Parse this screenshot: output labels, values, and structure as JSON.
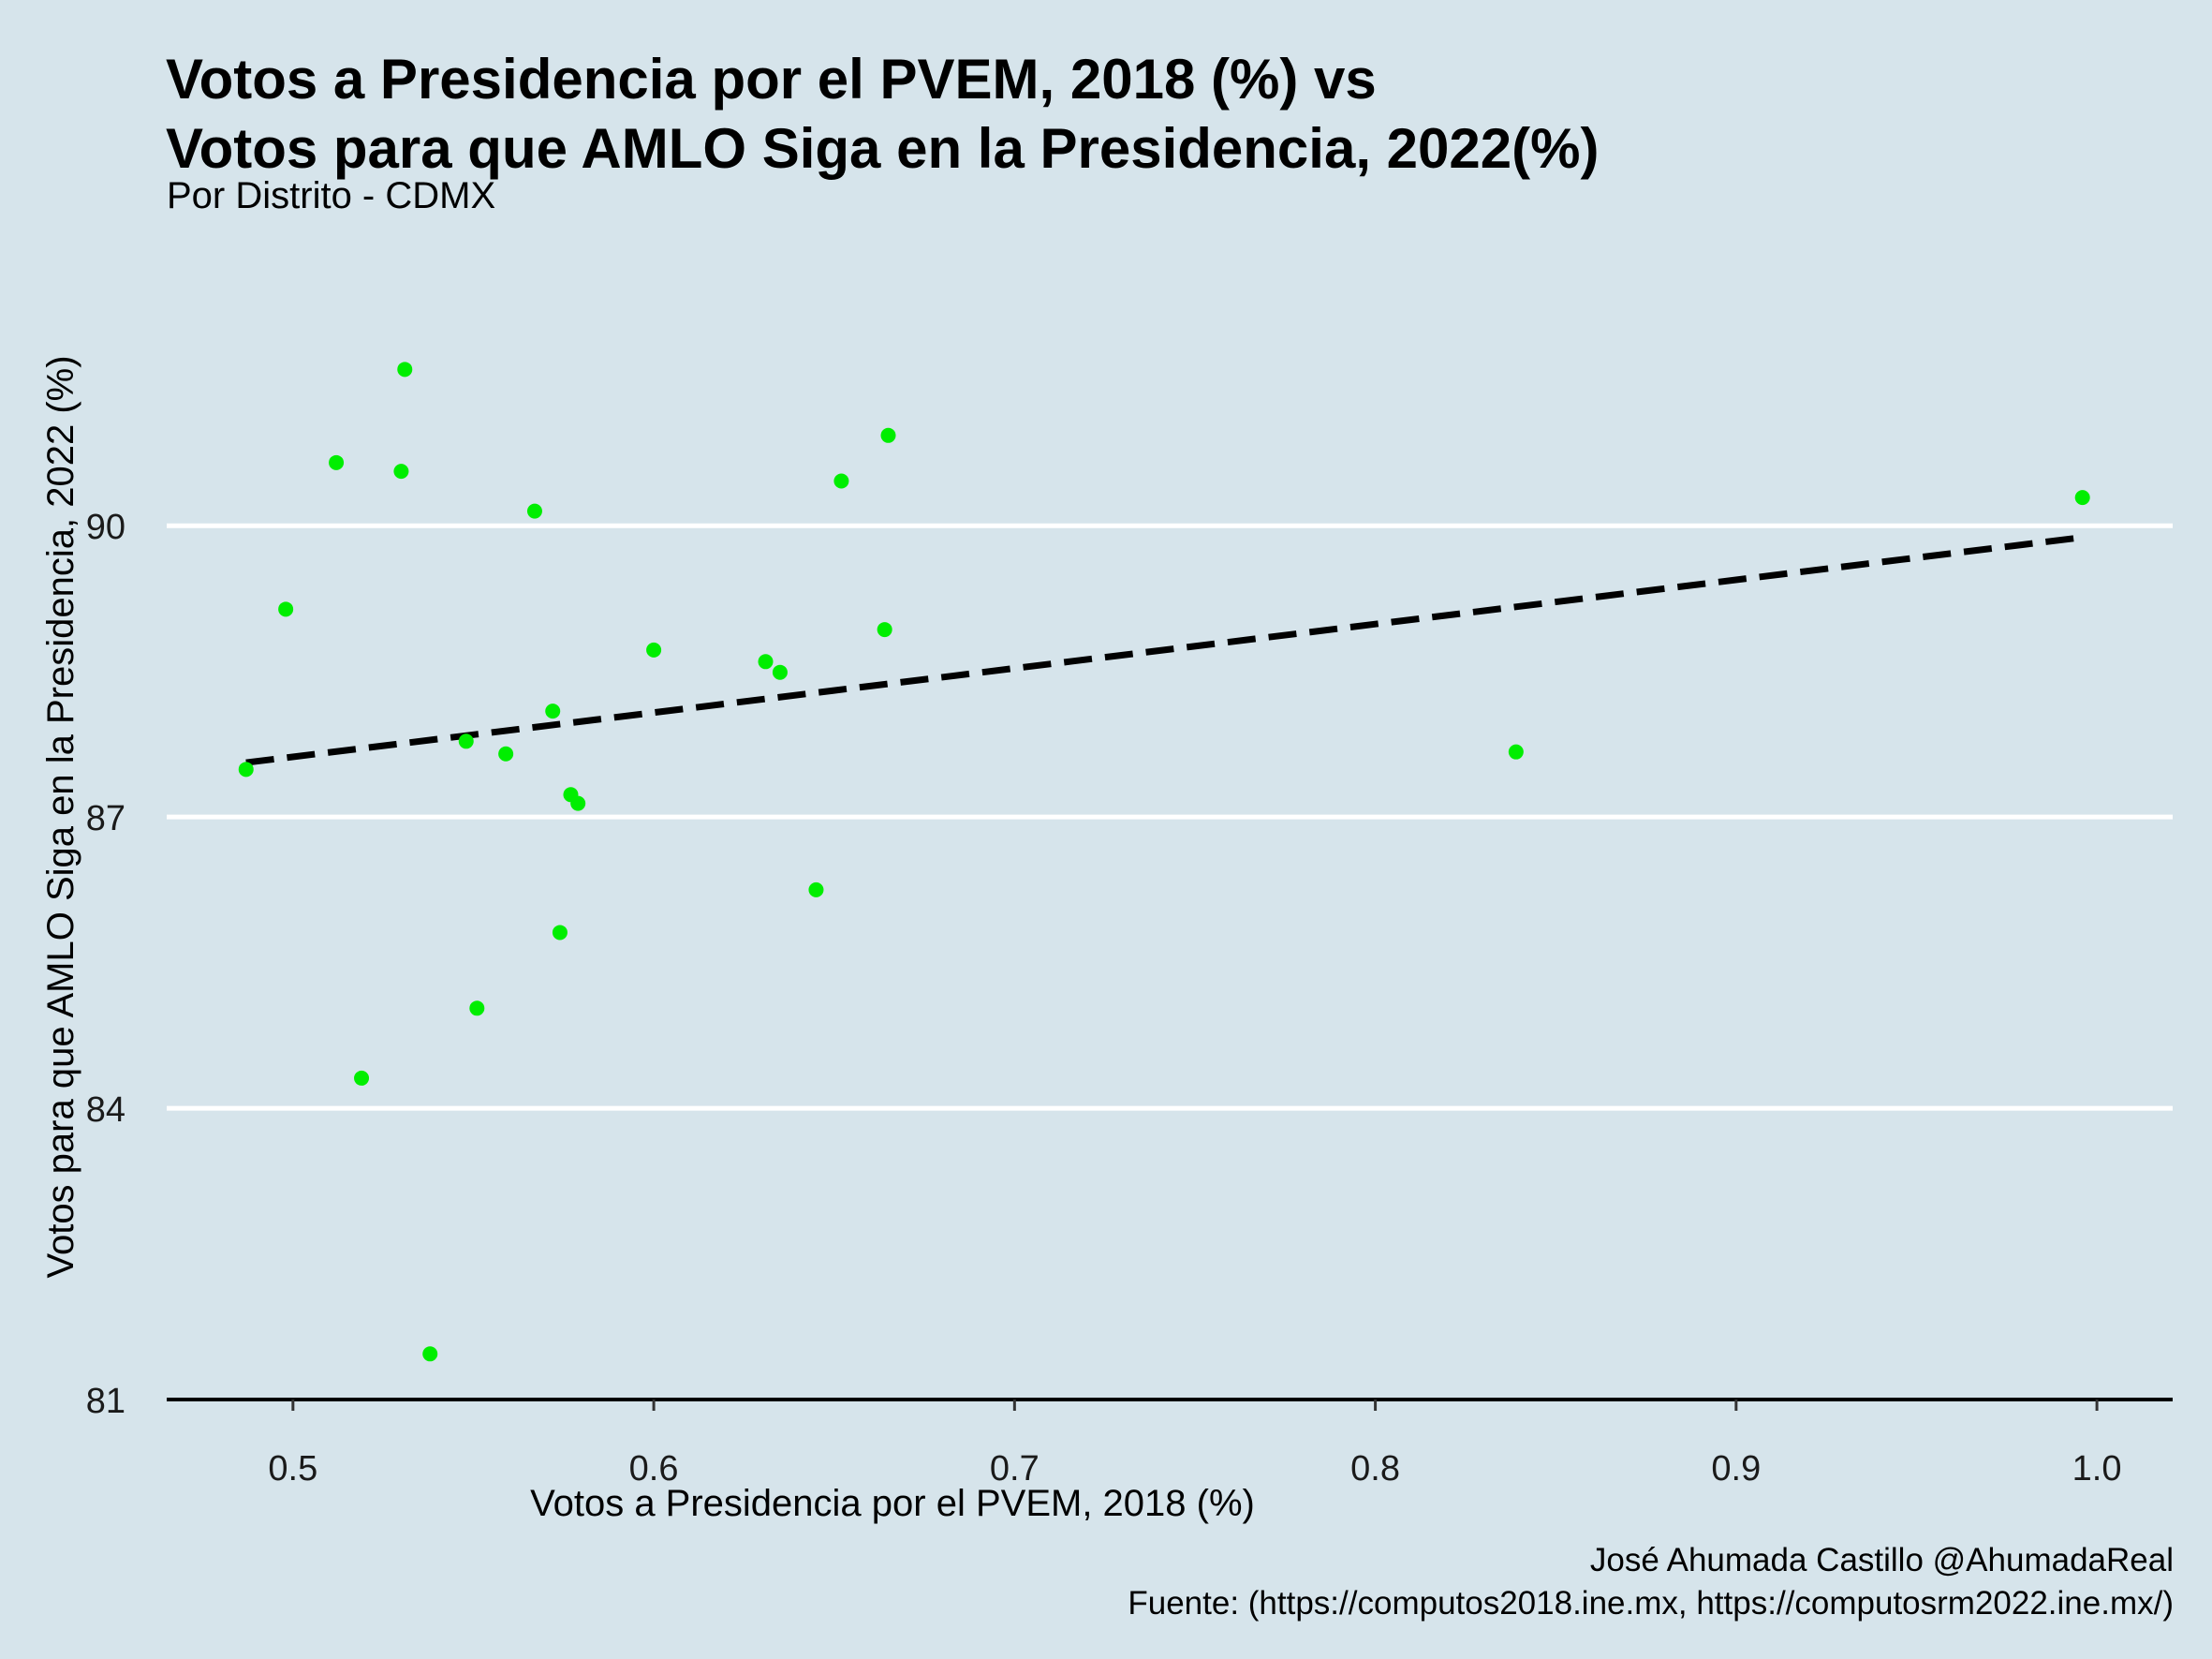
{
  "chart_data": {
    "type": "scatter",
    "title_lines": [
      "Votos a Presidencia por el PVEM, 2018 (%) vs",
      "Votos para que AMLO Siga en la Presidencia, 2022(%)"
    ],
    "subtitle": "Por Distrito - CDMX",
    "xlabel": "Votos a Presidencia por el PVEM, 2018 (%)",
    "ylabel": "Votos para que AMLO Siga en la Presidencia, 2022 (%)",
    "xlim": [
      0.465,
      1.021
    ],
    "ylim": [
      81.0,
      92.52
    ],
    "x_ticks": [
      0.5,
      0.6,
      0.7,
      0.8,
      0.9,
      1.0
    ],
    "x_tick_labels": [
      "0.5",
      "0.6",
      "0.7",
      "0.8",
      "0.9",
      "1.0"
    ],
    "y_ticks": [
      81,
      84,
      87,
      90
    ],
    "y_tick_labels": [
      "81",
      "84",
      "87",
      "90"
    ],
    "grid": "horizontal",
    "point_color": "#00ee00",
    "trend_color": "#000000",
    "trendline": {
      "type": "linear",
      "x": [
        0.487,
        0.996
      ],
      "y": [
        87.56,
        89.88
      ]
    },
    "x": [
      0.487,
      0.498,
      0.512,
      0.519,
      0.53,
      0.531,
      0.538,
      0.548,
      0.551,
      0.559,
      0.567,
      0.572,
      0.574,
      0.577,
      0.579,
      0.6,
      0.631,
      0.635,
      0.645,
      0.652,
      0.664,
      0.665,
      0.839,
      0.996
    ],
    "y": [
      87.49,
      89.14,
      90.65,
      84.31,
      90.56,
      91.61,
      81.47,
      87.78,
      85.03,
      87.65,
      90.15,
      88.09,
      85.81,
      87.23,
      87.14,
      88.72,
      88.6,
      88.49,
      86.25,
      90.46,
      88.93,
      90.93,
      87.67,
      90.29
    ]
  },
  "caption": {
    "author": "José Ahumada Castillo @AhumadaReal",
    "source": "Fuente: (https://computos2018.ine.mx, https://computosrm2022.ine.mx/)"
  }
}
